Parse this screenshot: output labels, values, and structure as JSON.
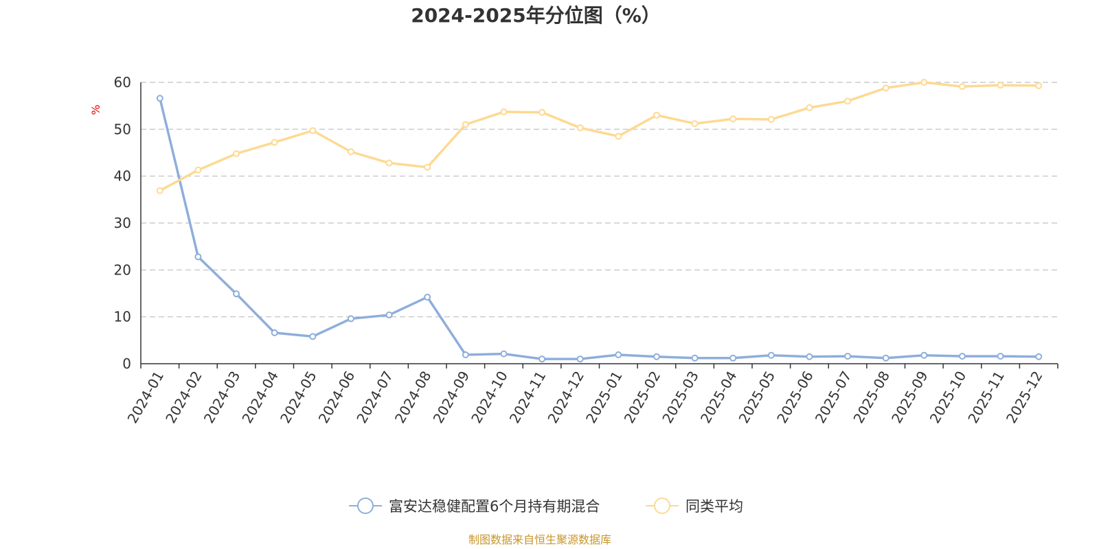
{
  "chart_data": {
    "type": "line",
    "title": "2024-2025年分位图（%）",
    "ylabel": "%",
    "ylim": [
      0,
      60
    ],
    "yticks": [
      0,
      10,
      20,
      30,
      40,
      50,
      60
    ],
    "grid": true,
    "legend_position": "bottom",
    "categories": [
      "2024-01",
      "2024-02",
      "2024-03",
      "2024-04",
      "2024-05",
      "2024-06",
      "2024-07",
      "2024-08",
      "2024-09",
      "2024-10",
      "2024-11",
      "2024-12",
      "2025-01",
      "2025-02",
      "2025-03",
      "2025-04",
      "2025-05",
      "2025-06",
      "2025-07",
      "2025-08",
      "2025-09",
      "2025-10",
      "2025-11",
      "2025-12"
    ],
    "series": [
      {
        "name": "富安达稳健配置6个月持有期混合",
        "color": "#8eaedb",
        "values": [
          56.6,
          22.8,
          14.9,
          6.6,
          5.8,
          9.6,
          10.4,
          14.2,
          1.9,
          2.1,
          1.0,
          1.0,
          1.9,
          1.5,
          1.2,
          1.2,
          1.8,
          1.5,
          1.6,
          1.2,
          1.8,
          1.6,
          1.6,
          1.5
        ]
      },
      {
        "name": "同类平均",
        "color": "#fdd992",
        "values": [
          36.9,
          41.3,
          44.8,
          47.2,
          49.7,
          45.2,
          42.8,
          41.9,
          51.0,
          53.7,
          53.6,
          50.3,
          48.5,
          53.0,
          51.2,
          52.2,
          52.1,
          54.6,
          56.0,
          58.8,
          60.0,
          59.1,
          59.4,
          59.3
        ]
      }
    ],
    "source": "制图数据来自恒生聚源数据库"
  }
}
